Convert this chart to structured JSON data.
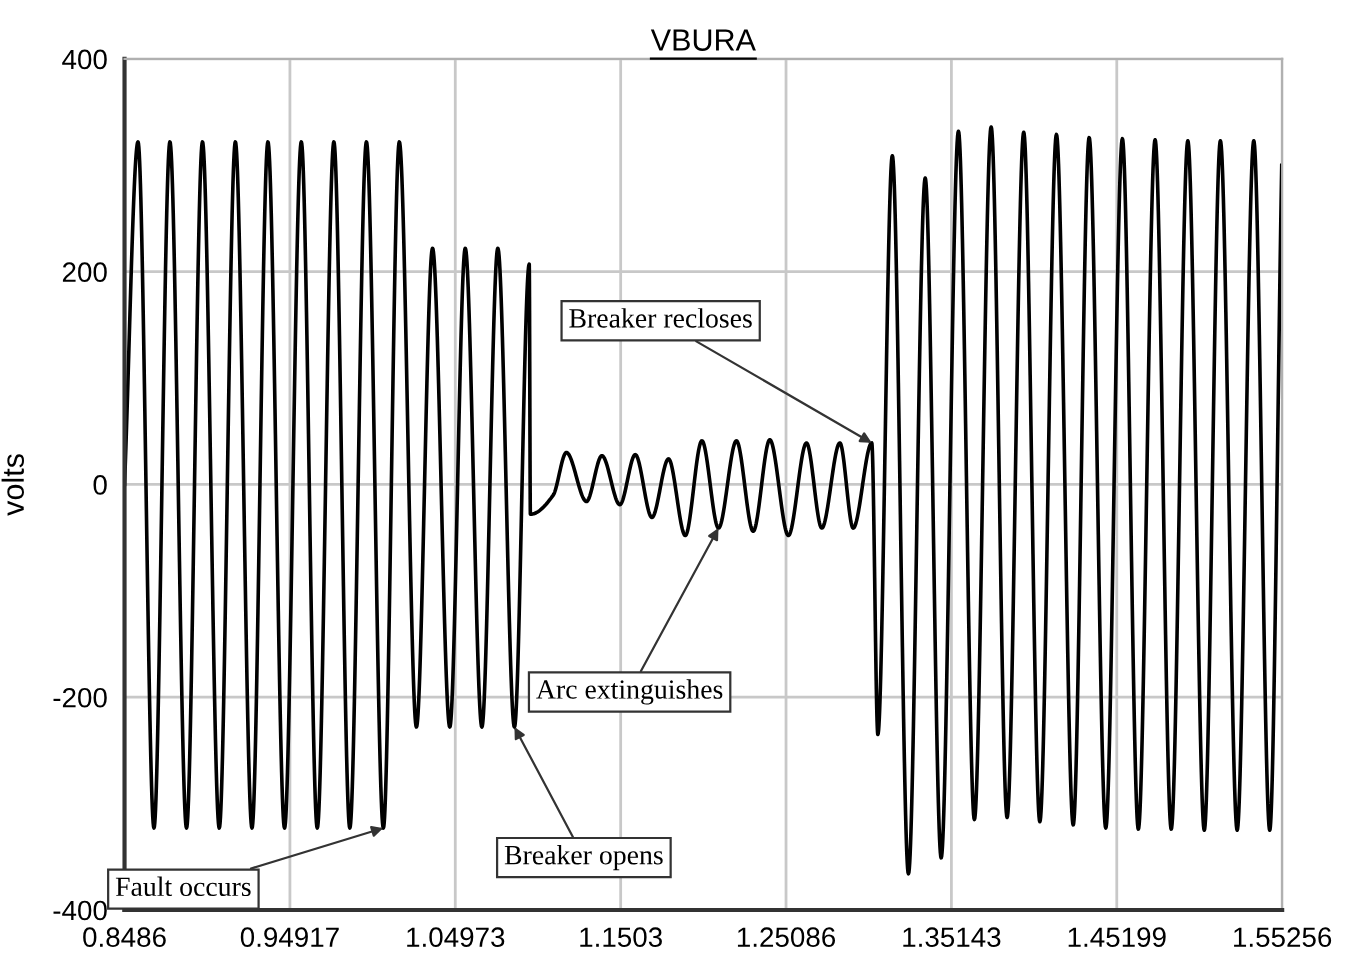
{
  "chart_data": {
    "type": "line",
    "title": "VBURA",
    "ylabel": "volts",
    "xlim": [
      0.8486,
      1.55256
    ],
    "xticks": [
      0.8486,
      0.94917,
      1.04973,
      1.1503,
      1.25086,
      1.35143,
      1.45199,
      1.55256
    ],
    "ylim": [
      -400,
      400
    ],
    "yticks": [
      -400,
      -200,
      0,
      200,
      400
    ],
    "grid": true,
    "marker": "none",
    "line_style": "solid",
    "series": [
      {
        "color": "#000000",
        "x": [
          0.8486,
          0.8568,
          0.8665,
          0.8762,
          0.8863,
          0.896,
          0.9062,
          0.916,
          0.9261,
          0.9358,
          0.9459,
          0.9561,
          0.9658,
          0.9759,
          0.9856,
          0.9957,
          1.006,
          1.0157,
          1.0261,
          1.0359,
          1.0464,
          1.0558,
          1.0659,
          1.0756,
          1.0857,
          1.0947,
          1.0954,
          1.1093,
          1.1173,
          1.1295,
          1.1389,
          1.1498,
          1.1592,
          1.1693,
          1.1794,
          1.1896,
          1.1997,
          1.2098,
          1.2207,
          1.2309,
          1.241,
          1.2523,
          1.2633,
          1.2726,
          1.2836,
          1.2917,
          1.303,
          1.3067,
          1.3155,
          1.3253,
          1.3355,
          1.3452,
          1.3557,
          1.3654,
          1.3756,
          1.3853,
          1.3954,
          1.4052,
          1.4153,
          1.4255,
          1.4352,
          1.4453,
          1.4554,
          1.4651,
          1.4753,
          1.4851,
          1.4952,
          1.5052,
          1.515,
          1.5252,
          1.5353,
          1.545,
          1.5523
        ],
        "values": [
          0,
          322,
          -323,
          322,
          -323,
          322,
          -323,
          322,
          -323,
          322,
          -323,
          322,
          -323,
          322,
          -323,
          322,
          -323,
          322,
          -228,
          222,
          -228,
          222,
          -228,
          222,
          -228,
          207,
          -28,
          -10,
          30,
          -16,
          27,
          -19,
          28,
          -31,
          24,
          -48,
          41,
          -41,
          41,
          -44,
          42,
          -48,
          39,
          -41,
          39,
          -41,
          39,
          -235,
          309,
          -366,
          288,
          -351,
          332,
          -315,
          336,
          -313,
          331,
          -317,
          329,
          -320,
          326,
          -323,
          325,
          -324,
          324,
          -324,
          323,
          -325,
          323,
          -325,
          323,
          -325,
          300
        ]
      }
    ],
    "annotations": [
      {
        "text": "Fault occurs",
        "x": 1.006,
        "y": -323
      },
      {
        "text": "Breaker opens",
        "x": 1.0857,
        "y": -228
      },
      {
        "text": "Breaker recloses",
        "x": 1.303,
        "y": 39
      },
      {
        "text": "Arc extinguishes",
        "x": 1.2098,
        "y": -41
      }
    ]
  }
}
